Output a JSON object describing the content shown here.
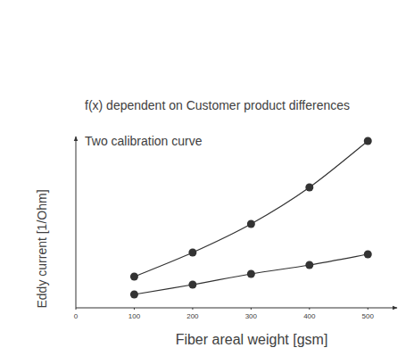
{
  "chart_data": {
    "type": "line",
    "title": "f(x) dependent on Customer product differences",
    "subtitle": "Two calibration curve",
    "xlabel": "Fiber areal weight [gsm]",
    "ylabel": "Eddy current [1/Ohm]",
    "x": [
      100,
      200,
      300,
      400,
      500
    ],
    "series": [
      {
        "color": "#333333",
        "marker": "circle",
        "line_style": "solid",
        "values": [
          1.75,
          3.1,
          4.7,
          6.75,
          9.35
        ]
      },
      {
        "color": "#333333",
        "marker": "circle",
        "line_style": "solid",
        "values": [
          0.75,
          1.3,
          1.9,
          2.4,
          3.0
        ]
      }
    ],
    "xlim": [
      0,
      550
    ],
    "xticks": [
      0,
      100,
      200,
      300,
      400,
      500
    ],
    "ylim": [
      0,
      9.6
    ],
    "tick_labels": "x",
    "grid": false
  }
}
